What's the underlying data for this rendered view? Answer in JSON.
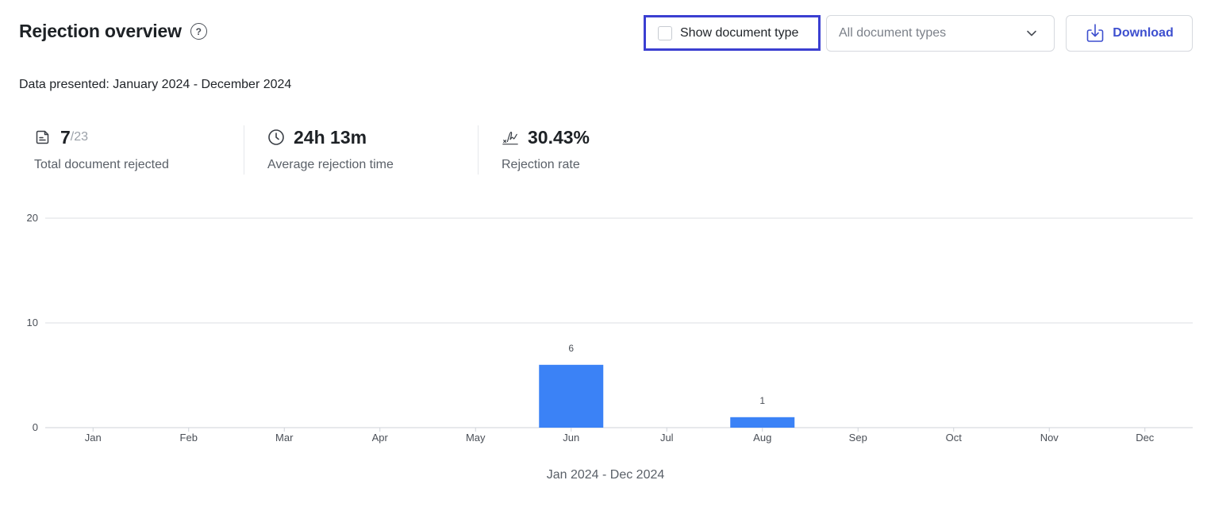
{
  "header": {
    "title": "Rejection overview",
    "help_icon": "question-circle-icon",
    "show_doc_type_label": "Show document type",
    "show_doc_type_checked": false,
    "doc_type_select": {
      "value": "All document types"
    },
    "download_label": "Download",
    "accent_color": "#3b3fd1"
  },
  "subtitle": "Data presented: January 2024 - December 2024",
  "stats": [
    {
      "icon": "document-icon",
      "value": "7",
      "sub": "/23",
      "label": "Total document rejected"
    },
    {
      "icon": "clock-icon",
      "value": "24h 13m",
      "sub": "",
      "label": "Average rejection time"
    },
    {
      "icon": "signature-icon",
      "value": "30.43%",
      "sub": "",
      "label": "Rejection rate"
    }
  ],
  "chart_data": {
    "type": "bar",
    "categories": [
      "Jan",
      "Feb",
      "Mar",
      "Apr",
      "May",
      "Jun",
      "Jul",
      "Aug",
      "Sep",
      "Oct",
      "Nov",
      "Dec"
    ],
    "values": [
      0,
      0,
      0,
      0,
      0,
      6,
      0,
      1,
      0,
      0,
      0,
      0
    ],
    "data_labels": {
      "Jun": "6",
      "Aug": "1"
    },
    "yticks": [
      "0",
      "10",
      "20"
    ],
    "ylim": [
      0,
      20
    ],
    "xlabel": "Jan 2024 - Dec 2024",
    "ylabel": "",
    "grid": true,
    "bar_color": "#3b82f6"
  }
}
